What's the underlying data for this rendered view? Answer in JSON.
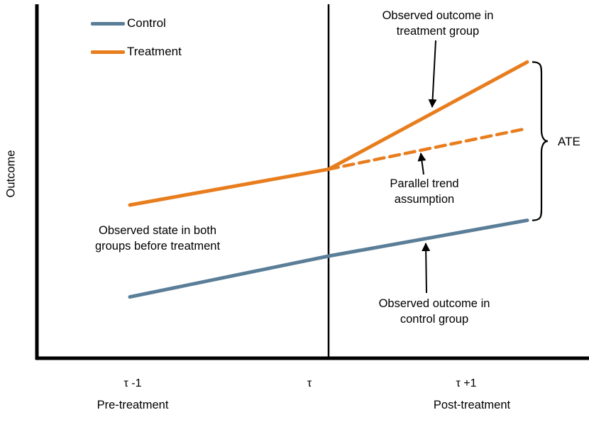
{
  "axes": {
    "y_label": "Outcome",
    "x_ticks": [
      {
        "label": "τ -1",
        "sublabel": "Pre-treatment"
      },
      {
        "label": "τ",
        "sublabel": ""
      },
      {
        "label": "τ +1",
        "sublabel": "Post-treatment"
      }
    ]
  },
  "legend": [
    {
      "label": "Control",
      "color": "#5B7E98"
    },
    {
      "label": "Treatment",
      "color": "#E87D1E"
    }
  ],
  "annotations": {
    "treatment_observed": "Observed outcome in\ntreatment group",
    "parallel_trend": "Parallel trend\nassumption",
    "pre_treatment_state": "Observed state in both\ngroups before treatment",
    "control_observed": "Observed outcome in\ncontrol group",
    "ate": "ATE"
  },
  "chart_data": {
    "type": "line",
    "title": "",
    "xlabel": "",
    "ylabel": "Outcome",
    "grid": false,
    "legend_position": "top-left",
    "x": [
      -1,
      0,
      1
    ],
    "x_tick_labels": [
      "τ -1",
      "τ",
      "τ +1"
    ],
    "x_tick_sublabels": [
      "Pre-treatment",
      "",
      "Post-treatment"
    ],
    "treatment_time_x": 0,
    "series": [
      {
        "name": "Control",
        "id": "control",
        "style": "solid",
        "color": "#5B7E98",
        "values": [
          1.2,
          2.0,
          2.7
        ]
      },
      {
        "name": "Treatment (observed)",
        "id": "treatment-observed",
        "style": "solid",
        "color": "#E87D1E",
        "values": [
          3.0,
          3.7,
          5.8
        ]
      },
      {
        "name": "Treatment counterfactual (parallel trend)",
        "id": "parallel-trend-counterfactual",
        "style": "dashed",
        "color": "#E87D1E",
        "x": [
          0,
          1
        ],
        "values": [
          3.7,
          4.5
        ]
      }
    ],
    "ate_span": {
      "from_series": "treatment-observed",
      "to_series": "control",
      "at_x": 1,
      "label": "ATE"
    }
  }
}
